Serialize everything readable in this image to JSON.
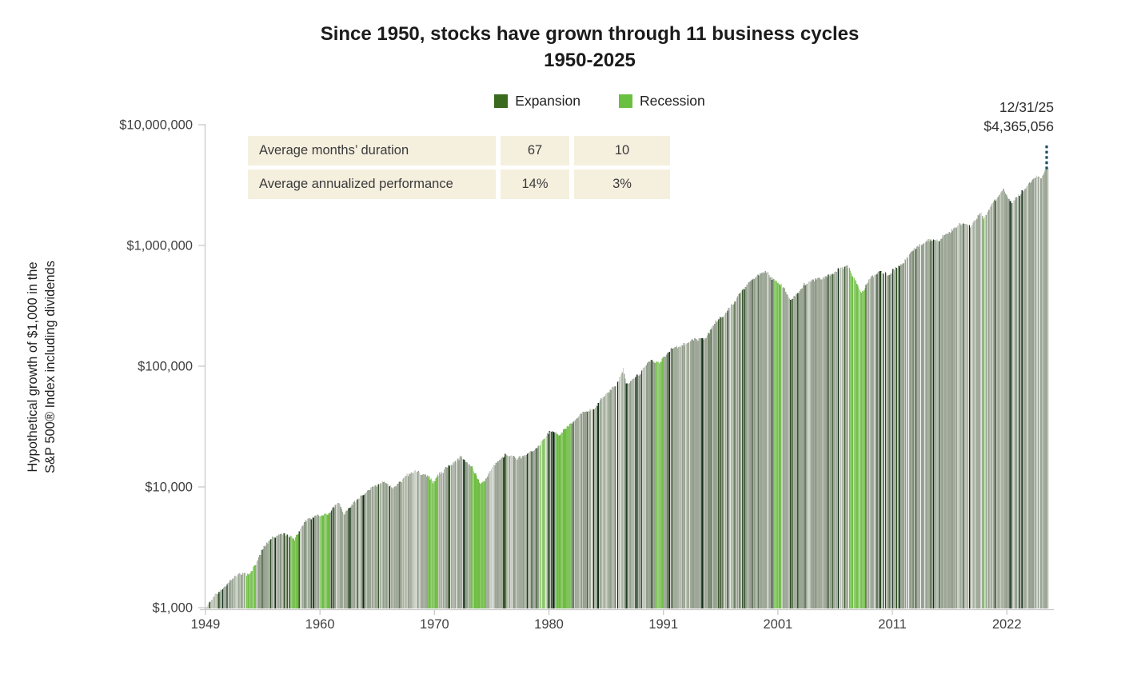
{
  "title": {
    "line1": "Since 1950, stocks have grown through 11 business cycles",
    "line2": "1950-2025"
  },
  "legend": {
    "items": [
      {
        "label": "Expansion",
        "color": "#3a6a1e"
      },
      {
        "label": "Recession",
        "color": "#6bc042"
      }
    ]
  },
  "annotation": {
    "date": "12/31/25",
    "value": "$4,365,056"
  },
  "stats_table": {
    "rows": [
      {
        "label": "Average months’ duration",
        "expansion": "67",
        "recession": "10"
      },
      {
        "label": "Average annualized performance",
        "expansion": "14%",
        "recession": "3%"
      }
    ]
  },
  "y_axis": {
    "label_line1": "Hypothetical growth of $1,000 in the",
    "label_line2": "S&P 500® Index including dividends"
  },
  "chart_data": {
    "type": "bar",
    "granularity": "monthly",
    "y_scale": "log",
    "title": "Since 1950, stocks have grown through 11 business cycles 1950-2025",
    "ylabel": "Hypothetical growth of $1,000 in the S&P 500® Index including dividends",
    "ylim": [
      1000,
      10000000
    ],
    "y_ticks": [
      {
        "value": 10000000,
        "label": "$10,000,000"
      },
      {
        "value": 1000000,
        "label": "$1,000,000"
      },
      {
        "value": 100000,
        "label": "$100,000"
      },
      {
        "value": 10000,
        "label": "$10,000"
      },
      {
        "value": 1000,
        "label": "$1,000"
      }
    ],
    "x_start": "1949-12",
    "x_end": "2025-12",
    "x_ticks": [
      {
        "month_index": 0,
        "label": "1949"
      },
      {
        "month_index": 124,
        "label": "1960"
      },
      {
        "month_index": 248,
        "label": "1970"
      },
      {
        "month_index": 372,
        "label": "1980"
      },
      {
        "month_index": 496,
        "label": "1991"
      },
      {
        "month_index": 620,
        "label": "2001"
      },
      {
        "month_index": 744,
        "label": "2011"
      },
      {
        "month_index": 868,
        "label": "2022"
      }
    ],
    "final_point": {
      "date": "12/31/25",
      "value": 4365056
    },
    "yearly_values": [
      [
        1949,
        1000
      ],
      [
        1950,
        1317
      ],
      [
        1951,
        1632
      ],
      [
        1952,
        1932
      ],
      [
        1953,
        1913
      ],
      [
        1954,
        2920
      ],
      [
        1955,
        3840
      ],
      [
        1956,
        4092
      ],
      [
        1957,
        3650
      ],
      [
        1958,
        5232
      ],
      [
        1959,
        5858
      ],
      [
        1960,
        5887
      ],
      [
        1961,
        7470
      ],
      [
        1962,
        6820
      ],
      [
        1963,
        8372
      ],
      [
        1964,
        9745
      ],
      [
        1965,
        10962
      ],
      [
        1966,
        9860
      ],
      [
        1967,
        12222
      ],
      [
        1968,
        13570
      ],
      [
        1969,
        12415
      ],
      [
        1970,
        12912
      ],
      [
        1971,
        14759
      ],
      [
        1972,
        17566
      ],
      [
        1973,
        14990
      ],
      [
        1974,
        11020
      ],
      [
        1975,
        15121
      ],
      [
        1976,
        18731
      ],
      [
        1977,
        17386
      ],
      [
        1978,
        18528
      ],
      [
        1979,
        21941
      ],
      [
        1980,
        29063
      ],
      [
        1981,
        27633
      ],
      [
        1982,
        33573
      ],
      [
        1983,
        41140
      ],
      [
        1984,
        43718
      ],
      [
        1985,
        57574
      ],
      [
        1986,
        68319
      ],
      [
        1987,
        71917
      ],
      [
        1988,
        83846
      ],
      [
        1989,
        110352
      ],
      [
        1990,
        106917
      ],
      [
        1991,
        139439
      ],
      [
        1992,
        150069
      ],
      [
        1993,
        165186
      ],
      [
        1994,
        167360
      ],
      [
        1995,
        230222
      ],
      [
        1996,
        283082
      ],
      [
        1997,
        377492
      ],
      [
        1998,
        485365
      ],
      [
        1999,
        587468
      ],
      [
        2000,
        534030
      ],
      [
        2001,
        470563
      ],
      [
        2002,
        366612
      ],
      [
        2003,
        471708
      ],
      [
        2004,
        523049
      ],
      [
        2005,
        548729
      ],
      [
        2006,
        635350
      ],
      [
        2007,
        670265
      ],
      [
        2008,
        422285
      ],
      [
        2009,
        534042
      ],
      [
        2010,
        614438
      ],
      [
        2011,
        627342
      ],
      [
        2012,
        727744
      ],
      [
        2013,
        963365
      ],
      [
        2014,
        1095238
      ],
      [
        2015,
        1110399
      ],
      [
        2016,
        1243244
      ],
      [
        2017,
        1514741
      ],
      [
        2018,
        1448338
      ],
      [
        2019,
        1904339
      ],
      [
        2020,
        2254858
      ],
      [
        2021,
        2901554
      ],
      [
        2022,
        2375842
      ],
      [
        2023,
        3000036
      ],
      [
        2024,
        3750045
      ],
      [
        2025,
        4365056
      ]
    ],
    "monthly_anchors": [
      [
        1962,
        6,
        5800
      ],
      [
        1970,
        6,
        10800
      ],
      [
        1974,
        9,
        10500
      ],
      [
        1987,
        8,
        95000
      ],
      [
        1987,
        11,
        70000
      ],
      [
        2000,
        8,
        610000
      ],
      [
        2002,
        9,
        350000
      ],
      [
        2007,
        10,
        690000
      ],
      [
        2009,
        2,
        400000
      ],
      [
        2011,
        9,
        570000
      ],
      [
        2020,
        3,
        1640000
      ],
      [
        2022,
        9,
        2200000
      ],
      [
        2025,
        4,
        3600000
      ]
    ],
    "recessions": [
      [
        "1953-07",
        "1954-05"
      ],
      [
        "1957-08",
        "1958-04"
      ],
      [
        "1960-04",
        "1961-02"
      ],
      [
        "1969-12",
        "1970-11"
      ],
      [
        "1973-11",
        "1975-03"
      ],
      [
        "1980-01",
        "1980-07"
      ],
      [
        "1981-07",
        "1982-11"
      ],
      [
        "1990-07",
        "1991-03"
      ],
      [
        "2001-03",
        "2001-11"
      ],
      [
        "2007-12",
        "2009-06"
      ],
      [
        "2020-02",
        "2020-04"
      ]
    ],
    "colors": {
      "expansion": "#3a6a1e",
      "recession": "#6bc042",
      "expansion_bar_palette_base": [
        "#9ca697",
        "#a2ab9c",
        "#949e8f",
        "#a8b0a2"
      ],
      "expansion_bar_palette_light": [
        "#c4c9bd",
        "#cdd2c7"
      ],
      "expansion_bar_palette_dark": [
        "#375428",
        "#2a4a22"
      ],
      "expansion_bar_palette_vdark": [
        "#122f1b"
      ],
      "recession_bar_palette": [
        "#79c14f",
        "#8bc96a",
        "#6fbc43",
        "#98d07e"
      ],
      "axis": "#c9c9c9",
      "tick_text": "#404040",
      "callout_line": "#1d4e60",
      "table_bg": "#f5efde"
    }
  }
}
